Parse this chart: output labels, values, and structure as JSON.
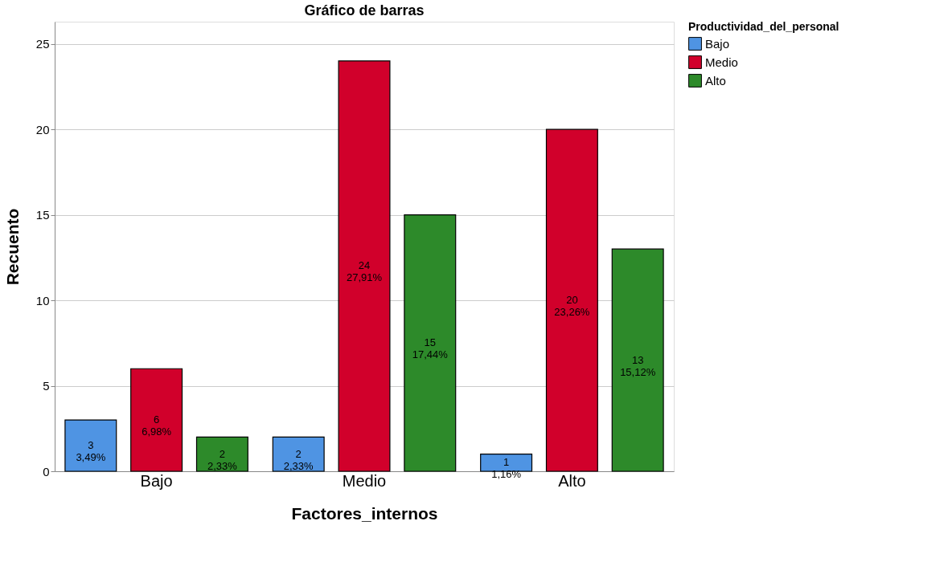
{
  "chart_data": {
    "type": "bar",
    "title": "Gráfico de barras",
    "xlabel": "Factores_internos",
    "ylabel": "Recuento",
    "legend_title": "Productividad_del_personal",
    "categories": [
      "Bajo",
      "Medio",
      "Alto"
    ],
    "series": [
      {
        "name": "Bajo",
        "color": "#4f94e3",
        "values": [
          3,
          2,
          1
        ],
        "value_labels": [
          "3\n3,49%",
          "2\n2,33%",
          "1\n1,16%"
        ]
      },
      {
        "name": "Medio",
        "color": "#d1002b",
        "values": [
          6,
          24,
          20
        ],
        "value_labels": [
          "6\n6,98%",
          "24\n27,91%",
          "20\n23,26%"
        ]
      },
      {
        "name": "Alto",
        "color": "#2d8a2a",
        "values": [
          2,
          15,
          13
        ],
        "value_labels": [
          "2\n2,33%",
          "15\n17,44%",
          "13\n15,12%"
        ]
      }
    ],
    "ylim": [
      0,
      26.3
    ],
    "yticks": [
      0,
      5,
      10,
      15,
      20,
      25
    ],
    "grid": "y",
    "legend": "top right"
  }
}
